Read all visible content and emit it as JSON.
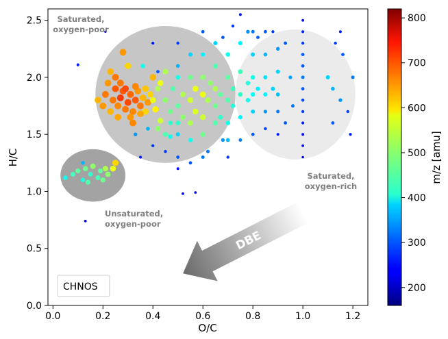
{
  "chart_data": {
    "type": "scatter",
    "title": "",
    "xlabel": "O/C",
    "ylabel": "H/C",
    "xlim": [
      -0.02,
      1.26
    ],
    "ylim": [
      0.0,
      2.6
    ],
    "xticks": [
      "0.0",
      "0.2",
      "0.4",
      "0.6",
      "0.8",
      "1.0",
      "1.2"
    ],
    "yticks": [
      "0.0",
      "0.5",
      "1.0",
      "1.5",
      "2.0",
      "2.5"
    ],
    "colorbar": {
      "label": "m/z [amu]",
      "min": 160,
      "max": 820,
      "ticks": [
        "200",
        "300",
        "400",
        "500",
        "600",
        "700",
        "800"
      ],
      "colormap": "jet"
    },
    "legend": {
      "label": "CHNOS",
      "placement": "lower-left"
    },
    "regions": [
      {
        "label": "Saturated, oxygen-poor",
        "cx": 0.45,
        "cy": 1.85,
        "rx": 0.28,
        "ry": 0.6,
        "color": "#c6c6c6"
      },
      {
        "label": "Saturated, oxygen-rich",
        "cx": 0.97,
        "cy": 1.85,
        "rx": 0.24,
        "ry": 0.57,
        "color": "#ebebeb"
      },
      {
        "label": "Unsaturated, oxygen-poor",
        "cx": 0.16,
        "cy": 1.14,
        "rx": 0.13,
        "ry": 0.23,
        "color": "#a3a3a3"
      }
    ],
    "annotation": {
      "text": "DBE",
      "arrow_from": [
        1.0,
        0.85
      ],
      "arrow_to": [
        0.52,
        0.34
      ]
    },
    "series": [
      {
        "points": [
          [
            0.05,
            1.12,
            420
          ],
          [
            0.08,
            1.15,
            450
          ],
          [
            0.1,
            1.18,
            470
          ],
          [
            0.12,
            1.1,
            430
          ],
          [
            0.13,
            1.2,
            480
          ],
          [
            0.14,
            1.08,
            460
          ],
          [
            0.15,
            1.15,
            440
          ],
          [
            0.16,
            1.22,
            500
          ],
          [
            0.18,
            1.12,
            455
          ],
          [
            0.19,
            1.18,
            470
          ],
          [
            0.2,
            1.1,
            480
          ],
          [
            0.21,
            1.2,
            520
          ],
          [
            0.22,
            1.15,
            500
          ],
          [
            0.24,
            1.2,
            560
          ],
          [
            0.25,
            1.25,
            600
          ],
          [
            0.12,
            1.25,
            360
          ],
          [
            0.1,
            2.11,
            260
          ],
          [
            0.21,
            2.4,
            210
          ],
          [
            0.13,
            0.74,
            240
          ],
          [
            0.18,
            1.8,
            620
          ],
          [
            0.2,
            1.75,
            640
          ],
          [
            0.21,
            1.85,
            660
          ],
          [
            0.22,
            1.95,
            640
          ],
          [
            0.23,
            1.7,
            620
          ],
          [
            0.24,
            1.8,
            660
          ],
          [
            0.25,
            1.9,
            680
          ],
          [
            0.26,
            1.75,
            650
          ],
          [
            0.27,
            1.82,
            700
          ],
          [
            0.28,
            1.88,
            680
          ],
          [
            0.29,
            1.72,
            660
          ],
          [
            0.3,
            1.78,
            690
          ],
          [
            0.31,
            1.85,
            670
          ],
          [
            0.32,
            1.7,
            650
          ],
          [
            0.33,
            1.8,
            680
          ],
          [
            0.34,
            1.88,
            640
          ],
          [
            0.35,
            1.75,
            660
          ],
          [
            0.36,
            1.82,
            620
          ],
          [
            0.37,
            1.7,
            600
          ],
          [
            0.38,
            1.78,
            640
          ],
          [
            0.39,
            1.85,
            600
          ],
          [
            0.4,
            1.8,
            560
          ],
          [
            0.41,
            1.72,
            580
          ],
          [
            0.27,
            1.95,
            660
          ],
          [
            0.29,
            1.9,
            690
          ],
          [
            0.31,
            1.65,
            640
          ],
          [
            0.33,
            1.92,
            650
          ],
          [
            0.35,
            1.68,
            630
          ],
          [
            0.37,
            1.9,
            610
          ],
          [
            0.42,
            1.9,
            520
          ],
          [
            0.43,
            1.62,
            540
          ],
          [
            0.23,
            2.05,
            620
          ],
          [
            0.25,
            2.0,
            660
          ],
          [
            0.28,
            2.22,
            640
          ],
          [
            0.3,
            2.1,
            600
          ],
          [
            0.32,
            1.6,
            650
          ],
          [
            0.26,
            1.65,
            630
          ],
          [
            0.45,
            1.8,
            500
          ],
          [
            0.47,
            1.7,
            480
          ],
          [
            0.48,
            1.9,
            460
          ],
          [
            0.5,
            1.75,
            470
          ],
          [
            0.5,
            2.0,
            420
          ],
          [
            0.5,
            1.6,
            440
          ],
          [
            0.5,
            1.5,
            380
          ],
          [
            0.5,
            2.1,
            360
          ],
          [
            0.5,
            1.3,
            300
          ],
          [
            0.5,
            1.2,
            250
          ],
          [
            0.5,
            2.3,
            280
          ],
          [
            0.52,
            1.85,
            520
          ],
          [
            0.52,
            1.65,
            500
          ],
          [
            0.55,
            1.8,
            540
          ],
          [
            0.55,
            2.0,
            480
          ],
          [
            0.55,
            1.6,
            520
          ],
          [
            0.55,
            1.45,
            420
          ],
          [
            0.55,
            2.2,
            380
          ],
          [
            0.57,
            1.9,
            560
          ],
          [
            0.57,
            1.7,
            550
          ],
          [
            0.6,
            1.85,
            560
          ],
          [
            0.6,
            2.0,
            500
          ],
          [
            0.6,
            1.65,
            540
          ],
          [
            0.6,
            1.5,
            480
          ],
          [
            0.6,
            2.2,
            400
          ],
          [
            0.6,
            1.3,
            320
          ],
          [
            0.6,
            2.4,
            300
          ],
          [
            0.62,
            1.8,
            520
          ],
          [
            0.63,
            1.95,
            500
          ],
          [
            0.65,
            1.75,
            480
          ],
          [
            0.65,
            1.9,
            520
          ],
          [
            0.65,
            2.1,
            460
          ],
          [
            0.65,
            1.6,
            460
          ],
          [
            0.65,
            2.3,
            380
          ],
          [
            0.67,
            1.85,
            470
          ],
          [
            0.67,
            1.65,
            440
          ],
          [
            0.7,
            1.8,
            460
          ],
          [
            0.7,
            2.0,
            470
          ],
          [
            0.7,
            1.6,
            420
          ],
          [
            0.7,
            2.2,
            420
          ],
          [
            0.7,
            1.45,
            360
          ],
          [
            0.72,
            1.9,
            450
          ],
          [
            0.72,
            1.75,
            430
          ],
          [
            0.75,
            1.85,
            440
          ],
          [
            0.75,
            2.05,
            450
          ],
          [
            0.75,
            1.65,
            400
          ],
          [
            0.75,
            1.45,
            320
          ],
          [
            0.75,
            2.3,
            400
          ],
          [
            0.78,
            1.8,
            420
          ],
          [
            0.78,
            1.95,
            430
          ],
          [
            0.8,
            1.85,
            410
          ],
          [
            0.8,
            2.0,
            420
          ],
          [
            0.8,
            1.7,
            380
          ],
          [
            0.8,
            2.2,
            380
          ],
          [
            0.8,
            1.5,
            300
          ],
          [
            0.8,
            2.4,
            320
          ],
          [
            0.82,
            1.9,
            400
          ],
          [
            0.85,
            1.85,
            400
          ],
          [
            0.85,
            2.0,
            390
          ],
          [
            0.85,
            1.7,
            340
          ],
          [
            0.85,
            2.2,
            360
          ],
          [
            0.85,
            1.55,
            280
          ],
          [
            0.85,
            2.4,
            300
          ],
          [
            0.88,
            1.9,
            380
          ],
          [
            0.9,
            1.85,
            370
          ],
          [
            0.9,
            2.05,
            380
          ],
          [
            0.9,
            1.7,
            320
          ],
          [
            0.9,
            2.25,
            340
          ],
          [
            0.9,
            1.5,
            260
          ],
          [
            1.0,
            2.5,
            240
          ],
          [
            1.0,
            2.4,
            260
          ],
          [
            1.0,
            2.3,
            280
          ],
          [
            1.0,
            2.2,
            300
          ],
          [
            1.0,
            2.1,
            300
          ],
          [
            1.0,
            2.0,
            320
          ],
          [
            1.0,
            1.9,
            300
          ],
          [
            1.0,
            1.8,
            290
          ],
          [
            1.0,
            1.7,
            280
          ],
          [
            1.0,
            1.6,
            260
          ],
          [
            1.0,
            1.5,
            250
          ],
          [
            1.0,
            1.4,
            240
          ],
          [
            1.0,
            1.3,
            230
          ],
          [
            1.1,
            2.0,
            380
          ],
          [
            1.12,
            1.9,
            360
          ],
          [
            1.15,
            1.8,
            340
          ],
          [
            1.13,
            2.3,
            280
          ],
          [
            1.16,
            2.2,
            300
          ],
          [
            1.18,
            1.7,
            280
          ],
          [
            1.2,
            2.0,
            320
          ],
          [
            1.19,
            1.5,
            260
          ],
          [
            1.15,
            2.4,
            260
          ],
          [
            1.12,
            1.6,
            300
          ],
          [
            0.52,
            0.98,
            240
          ],
          [
            0.57,
            0.99,
            230
          ],
          [
            0.35,
            1.3,
            260
          ],
          [
            0.4,
            1.4,
            280
          ],
          [
            0.42,
            2.05,
            300
          ],
          [
            0.4,
            2.3,
            260
          ],
          [
            0.45,
            1.35,
            280
          ],
          [
            0.55,
            1.25,
            300
          ],
          [
            0.62,
            1.35,
            320
          ],
          [
            0.7,
            1.3,
            280
          ],
          [
            0.68,
            1.45,
            340
          ],
          [
            0.4,
            2.0,
            620
          ],
          [
            0.43,
            1.95,
            560
          ],
          [
            0.45,
            2.05,
            520
          ],
          [
            0.47,
            1.6,
            440
          ],
          [
            0.38,
            1.55,
            360
          ],
          [
            0.33,
            1.5,
            340
          ],
          [
            0.36,
            2.1,
            420
          ],
          [
            0.68,
            2.35,
            300
          ],
          [
            0.72,
            2.45,
            280
          ],
          [
            0.78,
            2.4,
            340
          ],
          [
            0.75,
            2.55,
            260
          ],
          [
            0.82,
            2.35,
            300
          ],
          [
            0.88,
            2.4,
            280
          ],
          [
            0.93,
            2.3,
            300
          ],
          [
            0.95,
            2.0,
            350
          ],
          [
            0.93,
            1.6,
            300
          ],
          [
            0.96,
            1.75,
            320
          ],
          [
            0.42,
            1.55,
            500
          ],
          [
            0.45,
            1.5,
            460
          ],
          [
            0.47,
            1.48,
            420
          ]
        ]
      }
    ]
  }
}
